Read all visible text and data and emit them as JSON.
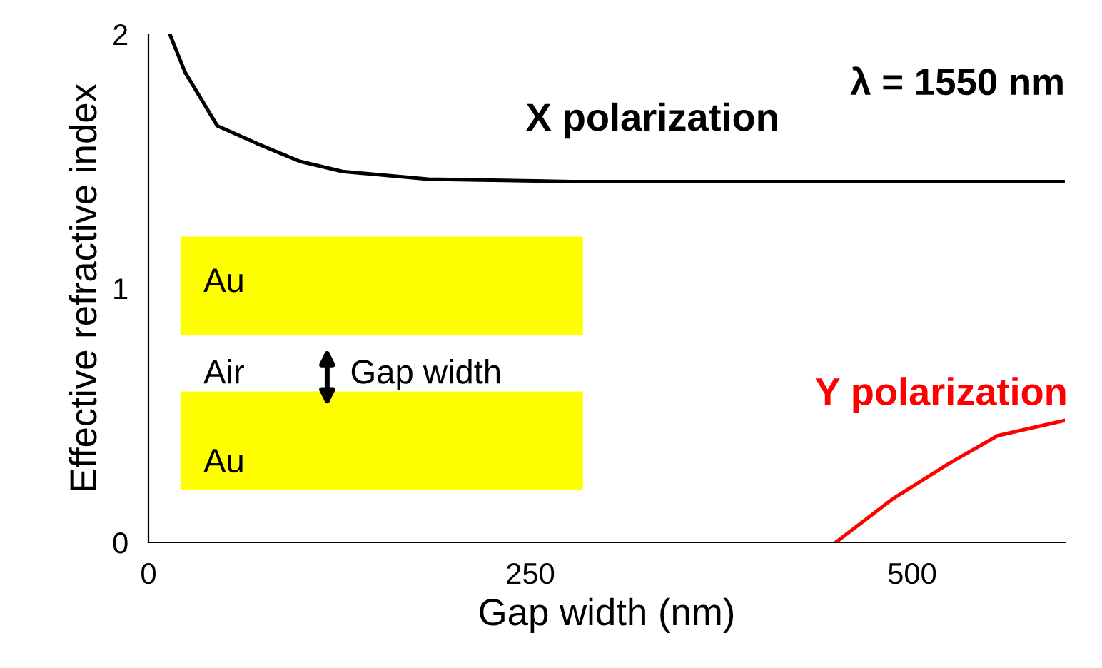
{
  "chart_data": {
    "type": "line",
    "xlabel": "Gap width (nm)",
    "ylabel": "Effective refractive index",
    "xlim": [
      0,
      600
    ],
    "ylim": [
      0,
      2
    ],
    "xticks": [
      0,
      250,
      500
    ],
    "yticks": [
      0,
      1,
      2
    ],
    "grid": false,
    "legend": false,
    "marker": "none",
    "line_style": "solid",
    "series": [
      {
        "name": "X polarization",
        "color": "#000000",
        "x": [
          14,
          24,
          45,
          71,
          99,
          127,
          183,
          277,
          600
        ],
        "values": [
          2.0,
          1.85,
          1.64,
          1.57,
          1.5,
          1.46,
          1.43,
          1.42,
          1.42
        ]
      },
      {
        "name": "Y polarization",
        "color": "#ff0000",
        "x": [
          450,
          487,
          524,
          556,
          600
        ],
        "values": [
          0,
          0.17,
          0.31,
          0.42,
          0.48
        ]
      }
    ],
    "annotations": [
      "λ = 1550 nm",
      "Au",
      "Air",
      "Gap width",
      "Au"
    ]
  }
}
